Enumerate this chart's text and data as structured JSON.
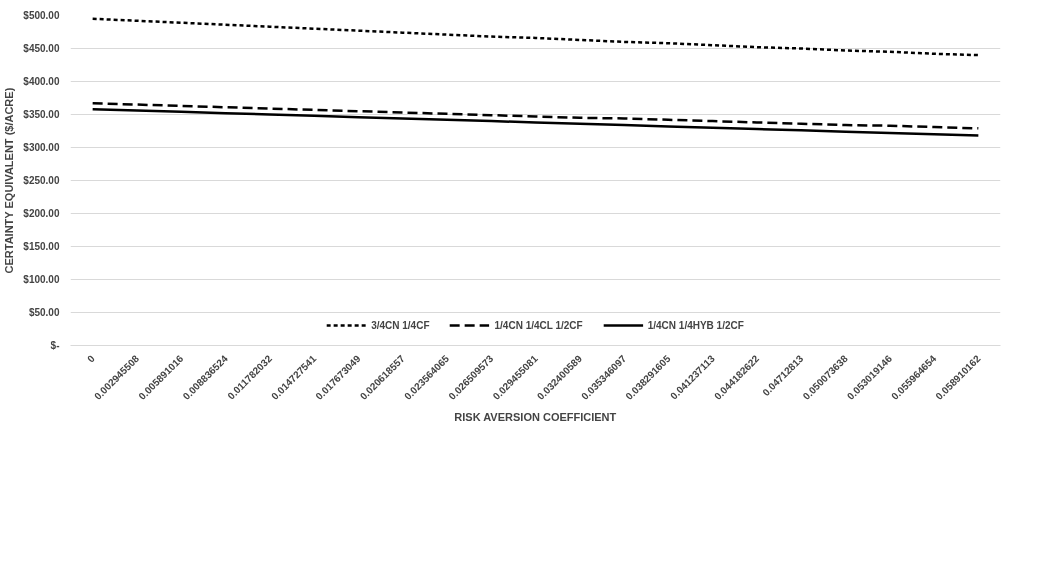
{
  "chart_data": {
    "type": "line",
    "xlabel": "RISK AVERSION COEFFICIENT",
    "ylabel": "CERTAINTY EQUIVALENT ($/ACRE)",
    "categories": [
      "0",
      "0.002945508",
      "0.005891016",
      "0.008836524",
      "0.011782032",
      "0.014727541",
      "0.017673049",
      "0.020618557",
      "0.023564065",
      "0.026509573",
      "0.029455081",
      "0.032400589",
      "0.035346097",
      "0.038291605",
      "0.041237113",
      "0.044182622",
      "0.04712813",
      "0.050073638",
      "0.053019146",
      "0.055964654",
      "0.058910162"
    ],
    "series": [
      {
        "name": "3/4CN 1/4CF",
        "color": "#000000",
        "line_style": "dotted",
        "values": [
          495,
          492,
          489,
          486,
          483,
          480,
          477,
          474,
          471,
          468,
          466,
          463,
          460,
          458,
          455,
          452,
          450,
          447,
          445,
          442,
          440
        ]
      },
      {
        "name": "1/4CN 1/4CL 1/2CF",
        "color": "#000000",
        "line_style": "dashed",
        "values": [
          367,
          365,
          363,
          361,
          359,
          357,
          355,
          353,
          351,
          349,
          347,
          345,
          344,
          342,
          340,
          338,
          336,
          334,
          333,
          331,
          329
        ]
      },
      {
        "name": "1/4CN 1/4HYB 1/2CF",
        "color": "#000000",
        "line_style": "solid",
        "values": [
          358,
          356,
          354,
          352,
          350,
          348,
          346,
          344,
          342,
          340,
          338,
          336,
          334,
          332,
          330,
          328,
          326,
          324,
          322,
          320,
          318
        ]
      }
    ],
    "ylim": [
      0,
      500
    ],
    "yticks": [
      {
        "value": 0,
        "label": "$-"
      },
      {
        "value": 50,
        "label": "$50.00"
      },
      {
        "value": 100,
        "label": "$100.00"
      },
      {
        "value": 150,
        "label": "$150.00"
      },
      {
        "value": 200,
        "label": "$200.00"
      },
      {
        "value": 250,
        "label": "$250.00"
      },
      {
        "value": 300,
        "label": "$300.00"
      },
      {
        "value": 350,
        "label": "$350.00"
      },
      {
        "value": 400,
        "label": "$400.00"
      },
      {
        "value": 450,
        "label": "$450.00"
      },
      {
        "value": 500,
        "label": "$500.00"
      }
    ],
    "grid": "y",
    "legend": "bottom",
    "marker": "none"
  }
}
